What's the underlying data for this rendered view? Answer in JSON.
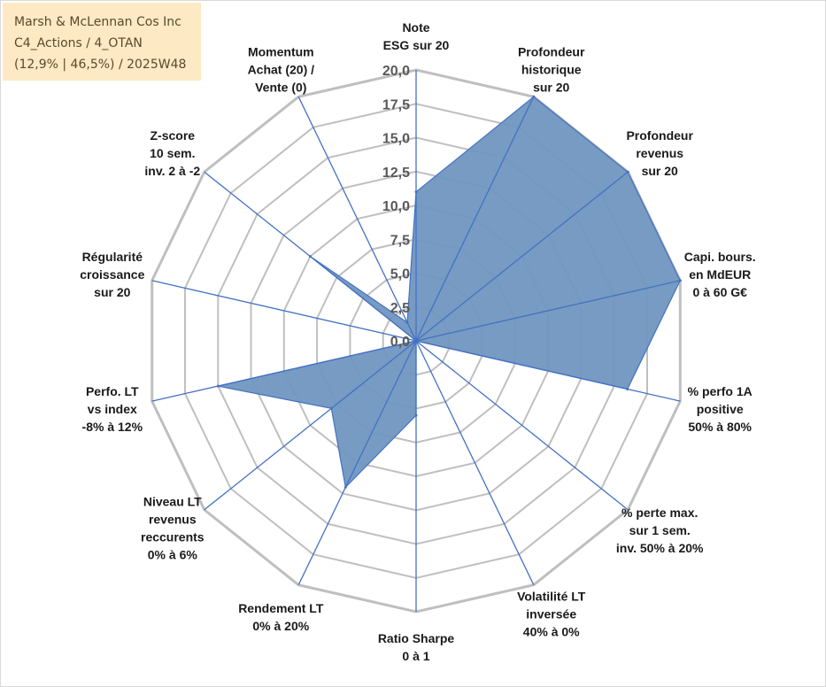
{
  "title_box": {
    "line1": "Marsh & McLennan Cos Inc",
    "line2": "C4_Actions / 4_OTAN",
    "line3": "(12,9% | 46,5%) / 2025W48"
  },
  "colors": {
    "fill": "#7096bf",
    "stroke": "#4472c4",
    "grid": "#bfbfbf",
    "title_bg": "#fde9c4"
  },
  "chart_data": {
    "type": "radar",
    "rmin": 0,
    "rmax": 20,
    "tick_step": 2.5,
    "tick_labels": [
      "0,0",
      "2,5",
      "5,0",
      "7,5",
      "10,0",
      "12,5",
      "15,0",
      "17,5",
      "20,0"
    ],
    "axes": [
      {
        "label": [
          "Note",
          "ESG sur 20"
        ],
        "value": 11
      },
      {
        "label": [
          "Profondeur",
          "historique",
          "sur 20"
        ],
        "value": 20
      },
      {
        "label": [
          "Profondeur",
          "revenus",
          "sur 20"
        ],
        "value": 20
      },
      {
        "label": [
          "Capi. bours.",
          "en MdEUR",
          "0 à 60 G€"
        ],
        "value": 20
      },
      {
        "label": [
          "% perfo 1A",
          "positive",
          "50% à 80%"
        ],
        "value": 16
      },
      {
        "label": [
          "% perte max.",
          "sur 1 sem.",
          "inv. 50% à 20%"
        ],
        "value": 0
      },
      {
        "label": [
          "Volatilité LT",
          "inversée",
          "40% à 0%"
        ],
        "value": 0
      },
      {
        "label": [
          "Ratio Sharpe",
          "0 à 1"
        ],
        "value": 5.5
      },
      {
        "label": [
          "Rendement LT",
          "0% à 20%"
        ],
        "value": 12
      },
      {
        "label": [
          "Niveau LT",
          "revenus",
          "reccurents",
          "0% à 6%"
        ],
        "value": 8
      },
      {
        "label": [
          "Perfo. LT",
          "vs index",
          "-8% à 12%"
        ],
        "value": 15
      },
      {
        "label": [
          "Régularité",
          "croissance",
          "sur 20"
        ],
        "value": 0
      },
      {
        "label": [
          "Z-score",
          "10 sem.",
          "inv. 2 à -2"
        ],
        "value": 10
      },
      {
        "label": [
          "Momentum",
          "Achat (20) /",
          "Vente (0)"
        ],
        "value": 1.5
      }
    ]
  }
}
